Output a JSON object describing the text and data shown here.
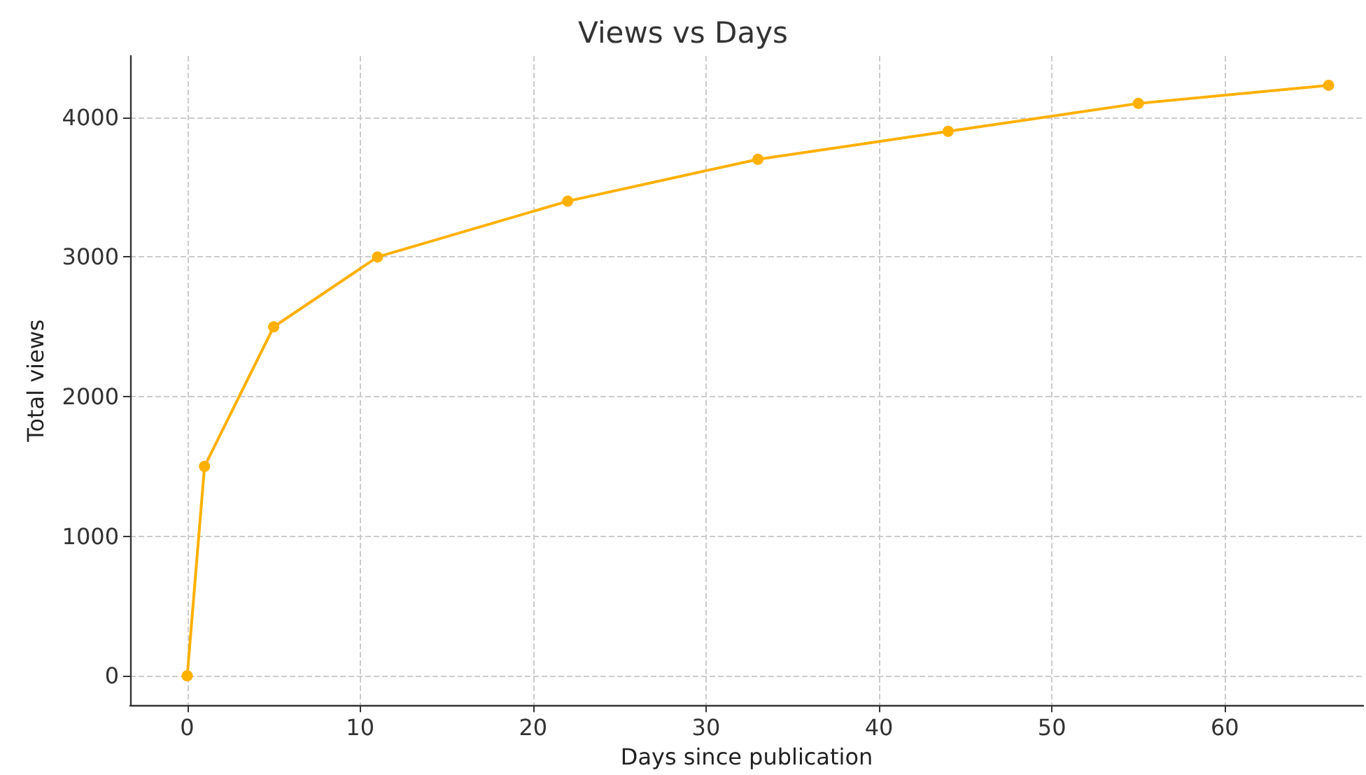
{
  "chart_data": {
    "type": "line",
    "title": "Views vs Days",
    "xlabel": "Days since publication",
    "ylabel": "Total views",
    "x": [
      0,
      1,
      5,
      11,
      22,
      33,
      44,
      55,
      66
    ],
    "series": [
      {
        "color": "#ffb000",
        "values": [
          0,
          1500,
          2500,
          3000,
          3400,
          3700,
          3900,
          4100,
          4230
        ]
      }
    ],
    "xlim": [
      -3.3,
      68
    ],
    "xticks": [
      0,
      10,
      20,
      30,
      40,
      50,
      60
    ],
    "ylim": [
      -210,
      4440
    ],
    "yticks": [
      0,
      1000,
      2000,
      3000,
      4000
    ],
    "grid": true,
    "marker": "circle",
    "line_style": "solid"
  }
}
